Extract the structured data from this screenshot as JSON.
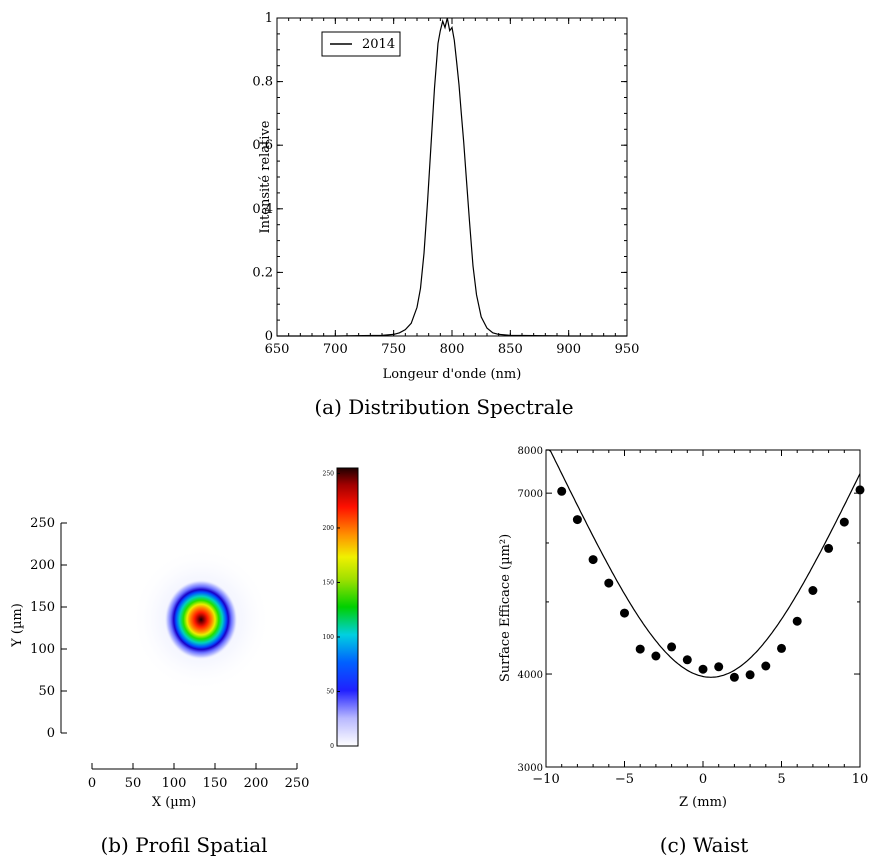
{
  "captions": {
    "a": "(a) Distribution Spectrale",
    "b": "(b) Profil Spatial",
    "c": "(c) Waist"
  },
  "chart_data": [
    {
      "id": "spectrum",
      "type": "line",
      "xlabel": "Longeur d'onde (nm)",
      "ylabel": "Intensité relative",
      "xlim": [
        650,
        950
      ],
      "ylim": [
        0,
        1
      ],
      "xticks": [
        650,
        700,
        750,
        800,
        850,
        900,
        950
      ],
      "yticks": [
        0,
        0.2,
        0.4,
        0.6,
        0.8,
        1
      ],
      "ytick_labels": [
        "0",
        "0.2",
        "0.4",
        "0.6",
        "0.8",
        "1"
      ],
      "legend": "top-left",
      "series": [
        {
          "name": "2014",
          "color": "#000000",
          "x": [
            650,
            700,
            740,
            750,
            755,
            760,
            765,
            770,
            773,
            776,
            779,
            782,
            785,
            788,
            790,
            792,
            794,
            796,
            798,
            800,
            802,
            804,
            806,
            808,
            810,
            812,
            815,
            818,
            821,
            825,
            830,
            835,
            840,
            850,
            900,
            950
          ],
          "y": [
            0.0,
            0.0,
            0.002,
            0.005,
            0.01,
            0.02,
            0.04,
            0.09,
            0.15,
            0.26,
            0.42,
            0.6,
            0.78,
            0.92,
            0.96,
            0.99,
            0.97,
            1.0,
            0.96,
            0.97,
            0.93,
            0.86,
            0.79,
            0.7,
            0.61,
            0.51,
            0.36,
            0.22,
            0.13,
            0.06,
            0.025,
            0.01,
            0.005,
            0.002,
            0.0,
            0.0
          ]
        }
      ]
    },
    {
      "id": "spatial-profile",
      "type": "heatmap",
      "xlabel": "X (µm)",
      "ylabel": "Y (µm)",
      "xlim": [
        0,
        250
      ],
      "ylim": [
        0,
        250
      ],
      "xticks": [
        0,
        50,
        100,
        150,
        200,
        250
      ],
      "yticks": [
        0,
        50,
        100,
        150,
        200,
        250
      ],
      "beam": {
        "center_x": 133,
        "center_y": 135,
        "radius_x": 45,
        "radius_y": 48,
        "peak": 255
      },
      "colorbar": {
        "min": 0,
        "max": 255,
        "ticks": [
          0,
          50,
          100,
          150,
          200,
          250
        ]
      }
    },
    {
      "id": "waist",
      "type": "scatter",
      "xlabel": "Z (mm)",
      "ylabel": "Surface Efficace (µm²)",
      "xlim": [
        -10,
        10
      ],
      "ylim": [
        3000,
        8000
      ],
      "scale_y": "log",
      "xticks": [
        -10,
        -5,
        0,
        5,
        10
      ],
      "yticks": [
        3000,
        4000,
        7000,
        8000
      ],
      "points": {
        "x": [
          -9,
          -8,
          -7,
          -6,
          -5,
          -4,
          -3,
          -2,
          -1,
          0,
          1,
          2,
          3,
          4,
          5,
          6,
          7,
          8,
          9,
          10
        ],
        "y": [
          7040,
          6450,
          5700,
          5300,
          4830,
          4320,
          4230,
          4350,
          4180,
          4060,
          4090,
          3960,
          3990,
          4100,
          4330,
          4710,
          5180,
          5900,
          6400,
          7070
        ]
      },
      "fit": {
        "type": "parabola",
        "center": 0.5,
        "minimum": 3960,
        "curvature": 38.5
      }
    }
  ]
}
